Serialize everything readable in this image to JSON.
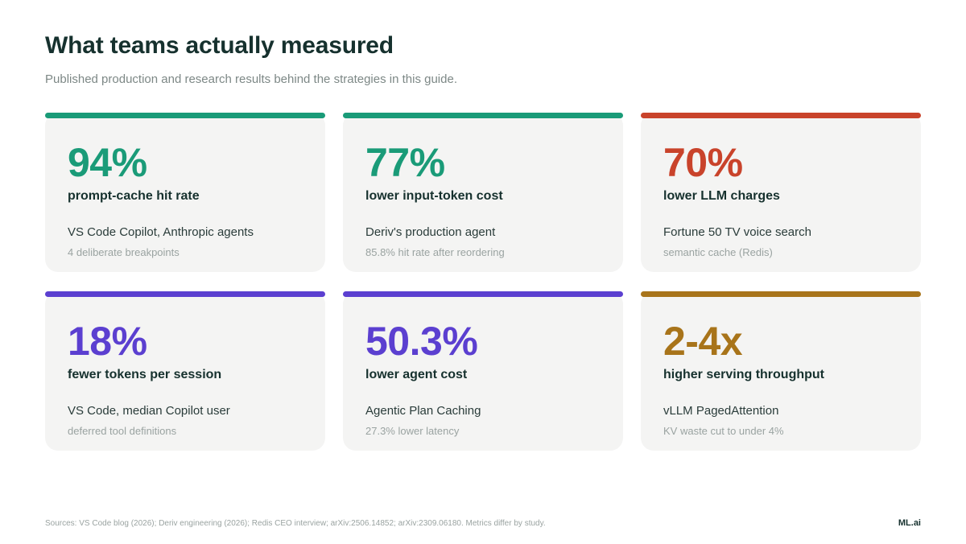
{
  "header": {
    "title": "What teams actually measured",
    "subtitle": "Published production and research results behind the strategies in this guide."
  },
  "colors": {
    "teal": "#1a9b78",
    "red": "#c9432b",
    "purple": "#5b3fd0",
    "gold": "#a8741a"
  },
  "cards": [
    {
      "value": "94%",
      "label": "prompt-cache hit rate",
      "source": "VS Code Copilot, Anthropic agents",
      "note": "4 deliberate breakpoints",
      "color": "#1a9b78"
    },
    {
      "value": "77%",
      "label": "lower input-token cost",
      "source": "Deriv's production agent",
      "note": "85.8% hit rate after reordering",
      "color": "#1a9b78"
    },
    {
      "value": "70%",
      "label": "lower LLM charges",
      "source": "Fortune 50 TV voice search",
      "note": "semantic cache (Redis)",
      "color": "#c9432b"
    },
    {
      "value": "18%",
      "label": "fewer tokens per session",
      "source": "VS Code, median Copilot user",
      "note": "deferred tool definitions",
      "color": "#5b3fd0"
    },
    {
      "value": "50.3%",
      "label": "lower agent cost",
      "source": "Agentic Plan Caching",
      "note": "27.3% lower latency",
      "color": "#5b3fd0"
    },
    {
      "value": "2-4x",
      "label": "higher serving throughput",
      "source": "vLLM PagedAttention",
      "note": "KV waste cut to under 4%",
      "color": "#a8741a"
    }
  ],
  "footer": {
    "sources": "Sources: VS Code blog (2026); Deriv engineering (2026); Redis CEO interview; arXiv:2506.14852; arXiv:2309.06180. Metrics differ by study.",
    "brand": "ML.ai"
  }
}
